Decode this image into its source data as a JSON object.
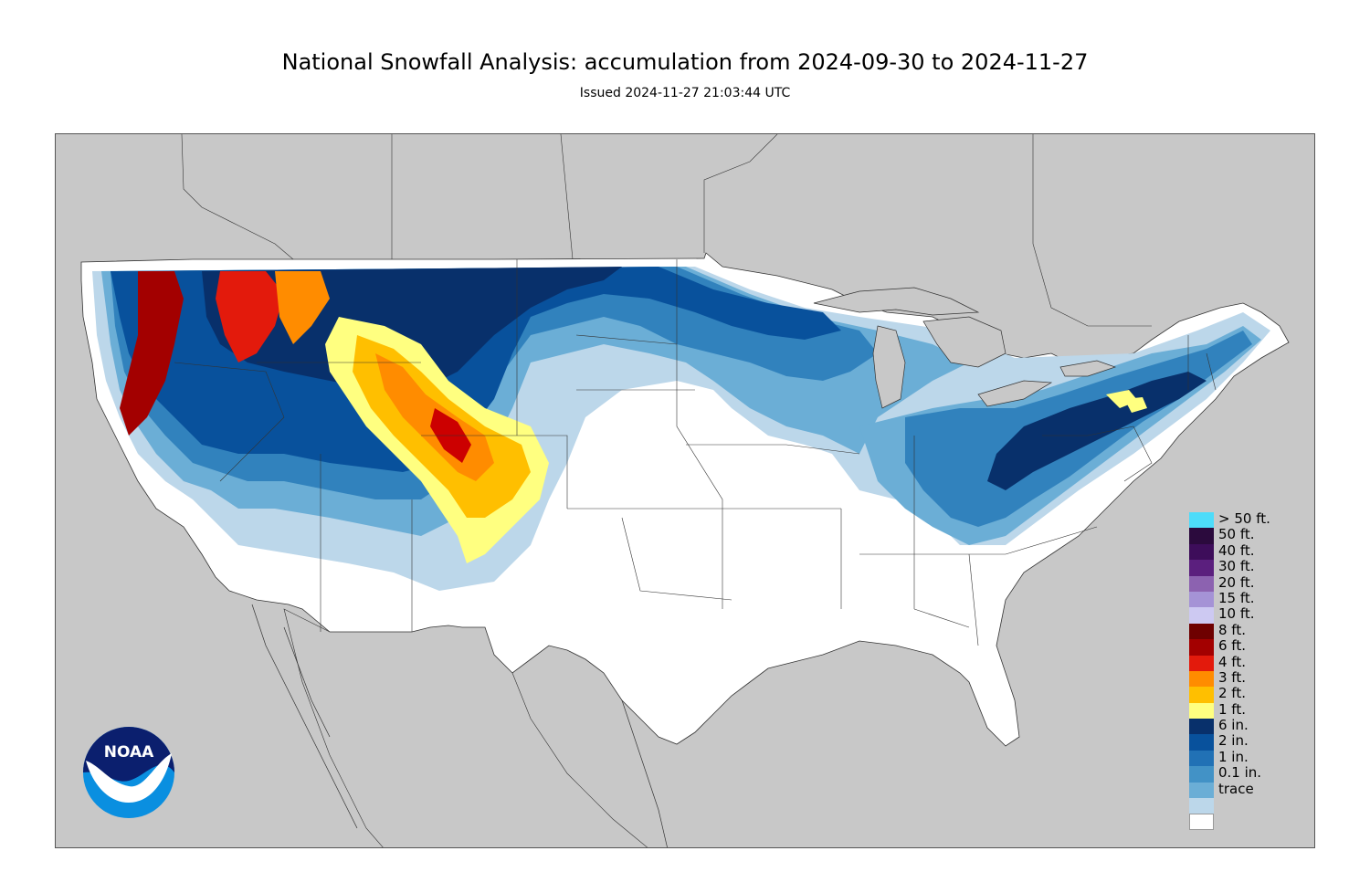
{
  "header": {
    "title": "National Snowfall Analysis: accumulation from 2024-09-30 to 2024-11-27",
    "subtitle": "Issued 2024-11-27 21:03:44 UTC"
  },
  "logo": {
    "text": "NOAA",
    "icon": "noaa-logo-icon"
  },
  "colors": {
    "land": "#ffffff",
    "background": "#c8c8c8",
    "light_blue": "#bcd7ea",
    "mid_blue": "#6baed6",
    "blue": "#3182bd",
    "dark_blue": "#08519c",
    "navy": "#08306b",
    "yellow": "#ffff80",
    "gold": "#ffcc00",
    "orange": "#ff9900",
    "red": "#cc0000",
    "dark_red": "#800000"
  },
  "legend": [
    {
      "label": "> 50 ft.",
      "color": "#4ddcfa"
    },
    {
      "label": "50 ft.",
      "color": "#2b0a3d"
    },
    {
      "label": "40 ft.",
      "color": "#3d0d5a"
    },
    {
      "label": "30 ft.",
      "color": "#5b1f7e"
    },
    {
      "label": "20 ft.",
      "color": "#8c62b0"
    },
    {
      "label": "15 ft.",
      "color": "#a593d6"
    },
    {
      "label": "10 ft.",
      "color": "#cdc9f2"
    },
    {
      "label": "8 ft.",
      "color": "#6e0000"
    },
    {
      "label": "6 ft.",
      "color": "#a30000"
    },
    {
      "label": "4 ft.",
      "color": "#e31a0c"
    },
    {
      "label": "3 ft.",
      "color": "#ff8c00"
    },
    {
      "label": "2 ft.",
      "color": "#ffbf00"
    },
    {
      "label": "1 ft.",
      "color": "#ffff80"
    },
    {
      "label": "6 in.",
      "color": "#08306b"
    },
    {
      "label": "2 in.",
      "color": "#08519c"
    },
    {
      "label": "1 in.",
      "color": "#2171b5"
    },
    {
      "label": "0.1 in.",
      "color": "#4292c6"
    },
    {
      "label": "trace",
      "color": "#6baed6"
    },
    {
      "label": "",
      "color": "#bcd7ea"
    },
    {
      "label": "",
      "color": "#ffffff"
    }
  ]
}
